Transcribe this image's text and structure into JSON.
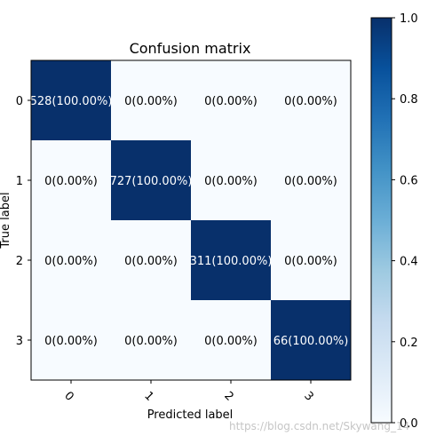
{
  "chart_data": {
    "type": "heatmap",
    "title": "Confusion matrix",
    "xlabel": "Predicted label",
    "ylabel": "True label",
    "x_categories": [
      "0",
      "1",
      "2",
      "3"
    ],
    "y_categories": [
      "0",
      "1",
      "2",
      "3"
    ],
    "values": [
      [
        1.0,
        0.0,
        0.0,
        0.0
      ],
      [
        0.0,
        1.0,
        0.0,
        0.0
      ],
      [
        0.0,
        0.0,
        1.0,
        0.0
      ],
      [
        0.0,
        0.0,
        0.0,
        1.0
      ]
    ],
    "cell_labels": [
      [
        "528(100.00%)",
        "0(0.00%)",
        "0(0.00%)",
        "0(0.00%)"
      ],
      [
        "0(0.00%)",
        "727(100.00%)",
        "0(0.00%)",
        "0(0.00%)"
      ],
      [
        "0(0.00%)",
        "0(0.00%)",
        "311(100.00%)",
        "0(0.00%)"
      ],
      [
        "0(0.00%)",
        "0(0.00%)",
        "0(0.00%)",
        "66(100.00%)"
      ]
    ],
    "colorbar": {
      "range": [
        0.0,
        1.0
      ],
      "ticks": [
        0.0,
        0.2,
        0.4,
        0.6,
        0.8,
        1.0
      ],
      "tick_labels": [
        "0.0",
        "0.2",
        "0.4",
        "0.6",
        "0.8",
        "1.0"
      ],
      "colormap": "Blues",
      "low_color": "#f7fbff",
      "high_color": "#08306b"
    },
    "x_tick_rotation_deg": 45
  },
  "watermark": "https://blog.csdn.net/Skywang_14"
}
